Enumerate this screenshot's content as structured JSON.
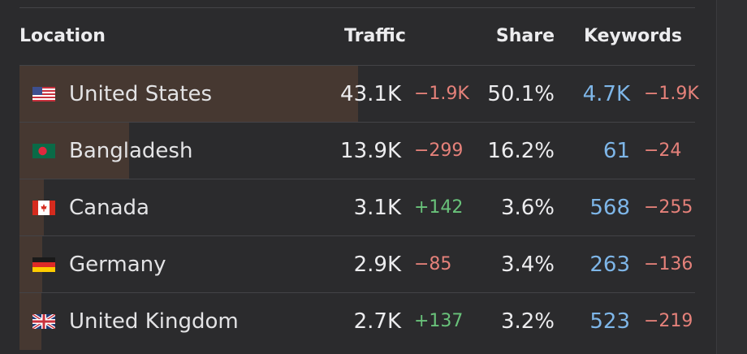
{
  "header": {
    "location": "Location",
    "traffic": "Traffic",
    "share": "Share",
    "keywords": "Keywords"
  },
  "colors": {
    "background": "#2b2b2d",
    "bar": "#463831",
    "negative": "#e5817a",
    "positive": "#69c27a",
    "keywords": "#7eb6e8"
  },
  "rows": [
    {
      "country": "United States",
      "flag_icon": "us-flag-icon",
      "traffic": "43.1K",
      "traffic_change": "−1.9K",
      "traffic_change_sign": "neg",
      "share": "50.1%",
      "share_fraction": 0.501,
      "keywords": "4.7K",
      "keywords_change": "−1.9K",
      "keywords_change_sign": "neg"
    },
    {
      "country": "Bangladesh",
      "flag_icon": "bangladesh-flag-icon",
      "traffic": "13.9K",
      "traffic_change": "−299",
      "traffic_change_sign": "neg",
      "share": "16.2%",
      "share_fraction": 0.162,
      "keywords": "61",
      "keywords_change": "−24",
      "keywords_change_sign": "neg"
    },
    {
      "country": "Canada",
      "flag_icon": "canada-flag-icon",
      "traffic": "3.1K",
      "traffic_change": "+142",
      "traffic_change_sign": "pos",
      "share": "3.6%",
      "share_fraction": 0.036,
      "keywords": "568",
      "keywords_change": "−255",
      "keywords_change_sign": "neg"
    },
    {
      "country": "Germany",
      "flag_icon": "germany-flag-icon",
      "traffic": "2.9K",
      "traffic_change": "−85",
      "traffic_change_sign": "neg",
      "share": "3.4%",
      "share_fraction": 0.034,
      "keywords": "263",
      "keywords_change": "−136",
      "keywords_change_sign": "neg"
    },
    {
      "country": "United Kingdom",
      "flag_icon": "uk-flag-icon",
      "traffic": "2.7K",
      "traffic_change": "+137",
      "traffic_change_sign": "pos",
      "share": "3.2%",
      "share_fraction": 0.032,
      "keywords": "523",
      "keywords_change": "−219",
      "keywords_change_sign": "neg"
    }
  ]
}
